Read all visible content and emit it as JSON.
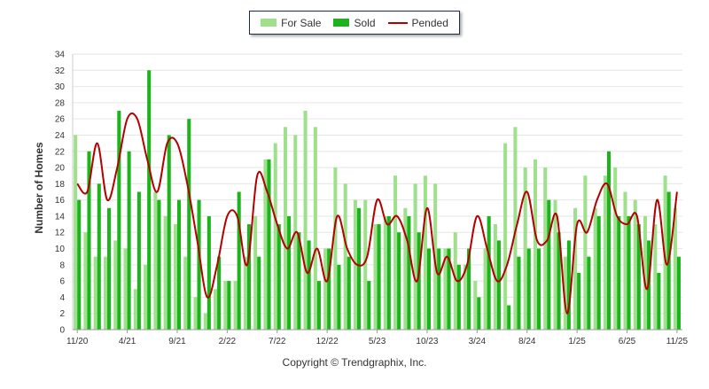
{
  "legend": {
    "for_sale": "For Sale",
    "sold": "Sold",
    "pended": "Pended"
  },
  "credit": "Copyright © Trendgraphix, Inc.",
  "colors": {
    "for_sale": "#9ee08c",
    "sold": "#1db31d",
    "pended": "#b30000",
    "grid": "#e6e6e6",
    "axis": "#666666"
  },
  "chart_data": {
    "type": "bar",
    "ylabel": "Number of Homes",
    "xlabel": "",
    "ylim": [
      0,
      34
    ],
    "yticks": [
      0,
      2,
      4,
      6,
      8,
      10,
      12,
      14,
      16,
      18,
      20,
      22,
      24,
      26,
      28,
      30,
      32,
      34
    ],
    "grid": true,
    "legend_position": "top-center",
    "x_tick_labels": [
      {
        "index": 0,
        "label": "11/20"
      },
      {
        "index": 5,
        "label": "4/21"
      },
      {
        "index": 10,
        "label": "9/21"
      },
      {
        "index": 15,
        "label": "2/22"
      },
      {
        "index": 20,
        "label": "7/22"
      },
      {
        "index": 25,
        "label": "12/22"
      },
      {
        "index": 30,
        "label": "5/23"
      },
      {
        "index": 35,
        "label": "10/23"
      },
      {
        "index": 40,
        "label": "3/24"
      },
      {
        "index": 45,
        "label": "8/24"
      },
      {
        "index": 50,
        "label": "1/25"
      },
      {
        "index": 55,
        "label": "6/25"
      },
      {
        "index": 60,
        "label": "11/25"
      }
    ],
    "months": [
      "11/20",
      "12/20",
      "1/21",
      "2/21",
      "3/21",
      "4/21",
      "5/21",
      "6/21",
      "7/21",
      "8/21",
      "9/21",
      "10/21",
      "11/21",
      "12/21",
      "1/22",
      "2/22",
      "3/22",
      "4/22",
      "5/22",
      "6/22",
      "7/22",
      "8/22",
      "9/22",
      "10/22",
      "11/22",
      "12/22",
      "1/23",
      "2/23",
      "3/23",
      "4/23",
      "5/23",
      "6/23",
      "7/23",
      "8/23",
      "9/23",
      "10/23",
      "11/23",
      "12/23",
      "1/24",
      "2/24",
      "3/24",
      "4/24",
      "5/24",
      "6/24",
      "7/24",
      "8/24",
      "9/24",
      "10/24",
      "11/24",
      "12/24",
      "1/25",
      "2/25",
      "3/25",
      "4/25",
      "5/25",
      "6/25",
      "7/25",
      "8/25",
      "9/25",
      "10/25",
      "11/25"
    ],
    "series": [
      {
        "name": "For Sale",
        "type": "bar",
        "values": [
          24,
          12,
          9,
          9,
          11,
          10,
          5,
          8,
          17,
          14,
          13,
          9,
          4,
          2,
          5,
          6,
          6,
          9,
          14,
          21,
          23,
          25,
          24,
          27,
          25,
          10,
          20,
          18,
          16,
          16,
          13,
          14,
          19,
          15,
          18,
          19,
          18,
          10,
          12,
          8,
          6,
          10,
          13,
          23,
          25,
          20,
          21,
          20,
          16,
          9,
          15,
          19,
          15,
          19,
          20,
          17,
          16,
          14,
          13,
          19,
          15
        ]
      },
      {
        "name": "Sold",
        "type": "bar",
        "values": [
          16,
          22,
          18,
          15,
          27,
          22,
          17,
          32,
          16,
          24,
          16,
          26,
          16,
          14,
          9,
          6,
          17,
          13,
          9,
          21,
          13,
          14,
          12,
          11,
          6,
          10,
          8,
          9,
          15,
          6,
          13,
          14,
          12,
          14,
          12,
          10,
          10,
          10,
          8,
          10,
          4,
          14,
          11,
          3,
          9,
          10,
          10,
          16,
          12,
          11,
          7,
          9,
          14,
          22,
          14,
          14,
          13,
          11,
          7,
          17,
          9
        ]
      },
      {
        "name": "Pended",
        "type": "line",
        "values": [
          18,
          17,
          23,
          16,
          20,
          26,
          26,
          21,
          17,
          23,
          23,
          18,
          11,
          4,
          8,
          14,
          14,
          8,
          19,
          17,
          13,
          10,
          12,
          7,
          10,
          6,
          14,
          10,
          8,
          9,
          16,
          13,
          14,
          11,
          6,
          15,
          7,
          9,
          6,
          8,
          14,
          10,
          6,
          8,
          13,
          17,
          11,
          11,
          14,
          2,
          13,
          12,
          16,
          18,
          14,
          13,
          14,
          5,
          16,
          8,
          17
        ]
      }
    ]
  }
}
